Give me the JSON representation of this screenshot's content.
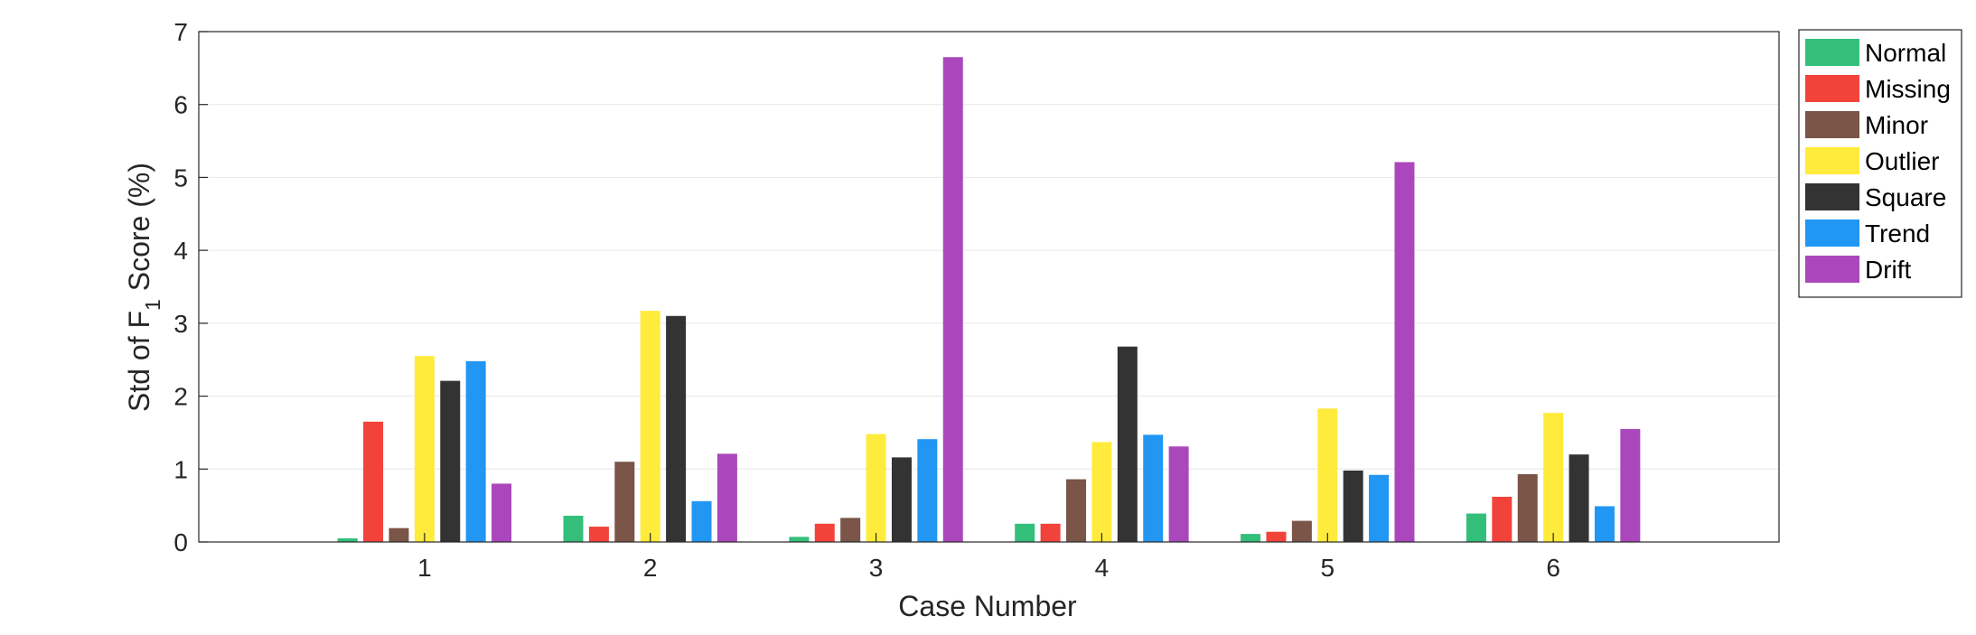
{
  "chart_data": {
    "type": "bar",
    "categories": [
      "1",
      "2",
      "3",
      "4",
      "5",
      "6"
    ],
    "xlabel": "Case Number",
    "ylabel": {
      "prefix": "Std of F",
      "subscript": "1",
      "suffix": " Score (%)"
    },
    "ylim": [
      0,
      7
    ],
    "yticks": [
      0,
      1,
      2,
      3,
      4,
      5,
      6,
      7
    ],
    "grid": "horizontal",
    "legend_position": "outside-top-right",
    "series": [
      {
        "name": "Normal",
        "color": "#33bf7a",
        "values": [
          0.05,
          0.36,
          0.07,
          0.25,
          0.11,
          0.39
        ]
      },
      {
        "name": "Missing",
        "color": "#f2433a",
        "values": [
          1.65,
          0.21,
          0.25,
          0.25,
          0.14,
          0.62
        ]
      },
      {
        "name": "Minor",
        "color": "#7a5548",
        "values": [
          0.19,
          1.1,
          0.33,
          0.86,
          0.29,
          0.93
        ]
      },
      {
        "name": "Outlier",
        "color": "#ffeb3b",
        "values": [
          2.55,
          3.17,
          1.48,
          1.37,
          1.83,
          1.77
        ]
      },
      {
        "name": "Square",
        "color": "#333333",
        "values": [
          2.21,
          3.1,
          1.16,
          2.68,
          0.98,
          1.2
        ]
      },
      {
        "name": "Trend",
        "color": "#2196f3",
        "values": [
          2.48,
          0.56,
          1.41,
          1.47,
          0.92,
          0.49
        ]
      },
      {
        "name": "Drift",
        "color": "#ab47bc",
        "values": [
          0.8,
          1.21,
          6.65,
          1.31,
          5.21,
          1.55
        ]
      }
    ]
  }
}
